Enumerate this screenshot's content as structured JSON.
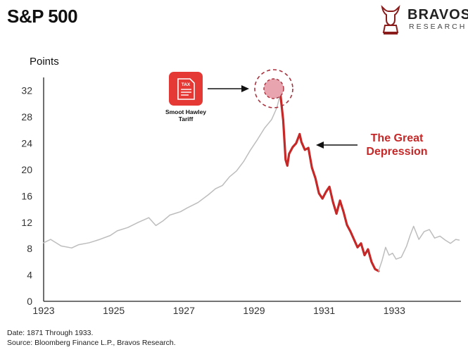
{
  "header": {
    "title": "S&P 500"
  },
  "brand": {
    "name": "BRAVOS",
    "sub": "RESEARCH",
    "logo_icon": "bull-logo-icon"
  },
  "footer": {
    "date_note": "Date: 1871 Through 1933.",
    "source_note": "Source: Bloomberg Finance L.P., Bravos Research."
  },
  "annotations": {
    "tariff_label_line1": "Smoot Hawley",
    "tariff_label_line2": "Tariff",
    "tariff_icon": "tax-document-icon",
    "tariff_icon_text": "TAX",
    "depression_line1": "The Great",
    "depression_line2": "Depression",
    "highlight_color": "#c62828",
    "peak_marker_color": "#e8a5b0"
  },
  "chart_data": {
    "type": "line",
    "title": "S&P 500",
    "ylabel": "Points",
    "xlabel": "",
    "xlim": [
      1923,
      1934.9
    ],
    "ylim": [
      0,
      34
    ],
    "x_ticks": [
      "1923",
      "1925",
      "1927",
      "1929",
      "1931",
      "1933"
    ],
    "y_ticks": [
      "0",
      "4",
      "8",
      "12",
      "16",
      "20",
      "24",
      "28",
      "32"
    ],
    "grid": false,
    "series": [
      {
        "name": "",
        "color": "#bdbdbd",
        "x": [
          1923.0,
          1923.2,
          1923.5,
          1923.8,
          1924.0,
          1924.3,
          1924.6,
          1924.9,
          1925.1,
          1925.4,
          1925.7,
          1926.0,
          1926.2,
          1926.4,
          1926.6,
          1926.9,
          1927.1,
          1927.4,
          1927.7,
          1927.9,
          1928.1,
          1928.3,
          1928.5,
          1928.7,
          1928.9,
          1929.1,
          1929.3,
          1929.5,
          1929.65,
          1929.75
        ],
        "y": [
          8.9,
          9.4,
          8.4,
          8.1,
          8.6,
          8.9,
          9.4,
          10.0,
          10.7,
          11.2,
          12.0,
          12.7,
          11.5,
          12.2,
          13.1,
          13.6,
          14.2,
          15.0,
          16.2,
          17.1,
          17.6,
          18.9,
          19.8,
          21.2,
          23.0,
          24.6,
          26.3,
          27.6,
          29.4,
          31.5
        ]
      },
      {
        "name": "",
        "color": "#c62828",
        "x": [
          1929.75,
          1929.83,
          1929.9,
          1929.95,
          1930.0,
          1930.1,
          1930.2,
          1930.3,
          1930.35,
          1930.45,
          1930.55,
          1930.65,
          1930.75,
          1930.85,
          1930.95,
          1931.05,
          1931.15,
          1931.25,
          1931.35,
          1931.45,
          1931.55,
          1931.65,
          1931.75,
          1931.85,
          1931.95,
          1932.05,
          1932.15,
          1932.25,
          1932.35,
          1932.45,
          1932.55
        ],
        "y": [
          31.5,
          27.5,
          21.5,
          20.6,
          22.4,
          23.4,
          24.0,
          25.4,
          24.2,
          23.0,
          23.3,
          20.3,
          18.7,
          16.4,
          15.6,
          16.6,
          17.4,
          15.1,
          13.3,
          15.3,
          13.6,
          11.6,
          10.6,
          9.4,
          8.2,
          8.8,
          7.0,
          7.9,
          6.0,
          4.9,
          4.6
        ]
      },
      {
        "name": "",
        "color": "#bdbdbd",
        "x": [
          1932.55,
          1932.65,
          1932.75,
          1932.85,
          1932.95,
          1933.05,
          1933.2,
          1933.35,
          1933.45,
          1933.55,
          1933.7,
          1933.85,
          1934.0,
          1934.15,
          1934.3,
          1934.45,
          1934.6,
          1934.75,
          1934.85
        ],
        "y": [
          4.6,
          6.2,
          8.2,
          7.0,
          7.3,
          6.4,
          6.7,
          8.4,
          10.0,
          11.4,
          9.4,
          10.6,
          10.9,
          9.6,
          9.9,
          9.3,
          8.8,
          9.4,
          9.3
        ]
      }
    ]
  }
}
